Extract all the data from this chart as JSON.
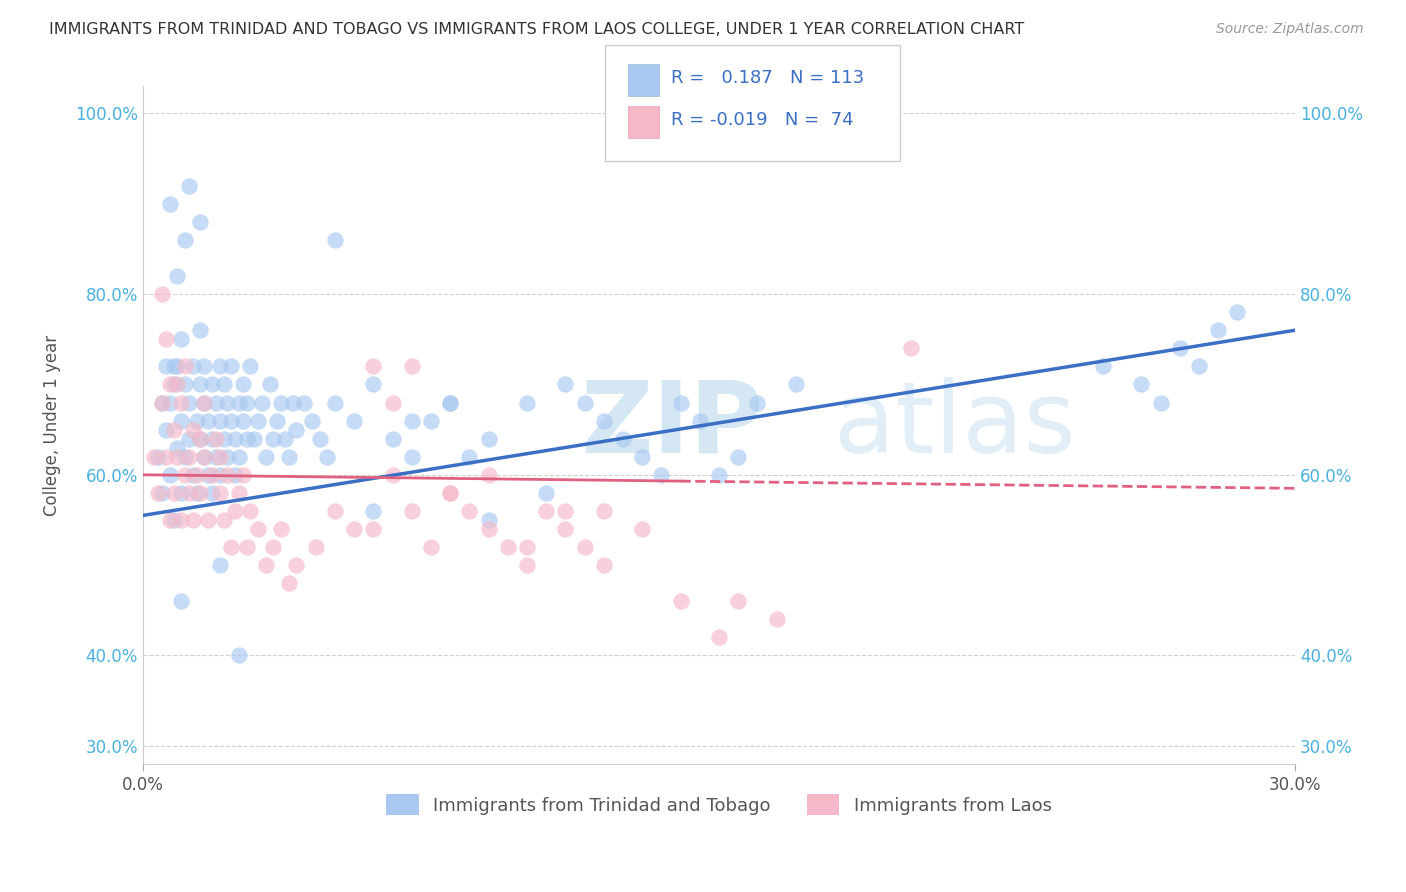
{
  "title": "IMMIGRANTS FROM TRINIDAD AND TOBAGO VS IMMIGRANTS FROM LAOS COLLEGE, UNDER 1 YEAR CORRELATION CHART",
  "source": "Source: ZipAtlas.com",
  "ylabel": "College, Under 1 year",
  "watermark_zip": "ZIP",
  "watermark_atlas": "atlas",
  "legend_labels": [
    "Immigrants from Trinidad and Tobago",
    "Immigrants from Laos"
  ],
  "blue_R": "0.187",
  "blue_N": "113",
  "pink_R": "-0.019",
  "pink_N": "74",
  "xlim": [
    0.0,
    0.3
  ],
  "ylim": [
    0.28,
    1.03
  ],
  "ytick_values": [
    0.3,
    0.4,
    0.6,
    0.8,
    1.0
  ],
  "ytick_labels": [
    "30.0%",
    "40.0%",
    "60.0%",
    "80.0%",
    "100.0%"
  ],
  "blue_color": "#a8c8f0",
  "blue_line_color": "#3a6fc4",
  "pink_color": "#f5b8c8",
  "pink_line_color": "#e06080",
  "background_color": "#ffffff",
  "grid_color": "#d0d0d0",
  "blue_scatter_x": [
    0.004,
    0.005,
    0.005,
    0.006,
    0.006,
    0.007,
    0.007,
    0.008,
    0.008,
    0.009,
    0.009,
    0.01,
    0.01,
    0.01,
    0.011,
    0.011,
    0.012,
    0.012,
    0.013,
    0.013,
    0.014,
    0.014,
    0.015,
    0.015,
    0.015,
    0.016,
    0.016,
    0.016,
    0.017,
    0.017,
    0.018,
    0.018,
    0.018,
    0.019,
    0.019,
    0.02,
    0.02,
    0.02,
    0.021,
    0.021,
    0.022,
    0.022,
    0.023,
    0.023,
    0.024,
    0.024,
    0.025,
    0.025,
    0.026,
    0.026,
    0.027,
    0.027,
    0.028,
    0.029,
    0.03,
    0.031,
    0.032,
    0.033,
    0.034,
    0.035,
    0.036,
    0.037,
    0.038,
    0.039,
    0.04,
    0.042,
    0.044,
    0.046,
    0.048,
    0.05,
    0.055,
    0.06,
    0.065,
    0.07,
    0.08,
    0.09,
    0.1,
    0.11,
    0.12,
    0.13,
    0.14,
    0.15,
    0.16,
    0.17,
    0.09,
    0.085,
    0.075,
    0.105,
    0.115,
    0.125,
    0.135,
    0.145,
    0.155,
    0.25,
    0.26,
    0.265,
    0.27,
    0.275,
    0.28,
    0.285,
    0.007,
    0.008,
    0.009,
    0.01,
    0.011,
    0.012,
    0.015,
    0.02,
    0.025,
    0.05,
    0.06,
    0.07,
    0.08
  ],
  "blue_scatter_y": [
    0.62,
    0.58,
    0.68,
    0.65,
    0.72,
    0.6,
    0.68,
    0.55,
    0.7,
    0.63,
    0.72,
    0.58,
    0.66,
    0.75,
    0.62,
    0.7,
    0.64,
    0.68,
    0.6,
    0.72,
    0.58,
    0.66,
    0.64,
    0.7,
    0.76,
    0.62,
    0.68,
    0.72,
    0.6,
    0.66,
    0.64,
    0.7,
    0.58,
    0.62,
    0.68,
    0.66,
    0.72,
    0.6,
    0.64,
    0.7,
    0.62,
    0.68,
    0.66,
    0.72,
    0.6,
    0.64,
    0.68,
    0.62,
    0.66,
    0.7,
    0.64,
    0.68,
    0.72,
    0.64,
    0.66,
    0.68,
    0.62,
    0.7,
    0.64,
    0.66,
    0.68,
    0.64,
    0.62,
    0.68,
    0.65,
    0.68,
    0.66,
    0.64,
    0.62,
    0.68,
    0.66,
    0.7,
    0.64,
    0.66,
    0.68,
    0.64,
    0.68,
    0.7,
    0.66,
    0.62,
    0.68,
    0.6,
    0.68,
    0.7,
    0.55,
    0.62,
    0.66,
    0.58,
    0.68,
    0.64,
    0.6,
    0.66,
    0.62,
    0.72,
    0.7,
    0.68,
    0.74,
    0.72,
    0.76,
    0.78,
    0.9,
    0.72,
    0.82,
    0.46,
    0.86,
    0.92,
    0.88,
    0.5,
    0.4,
    0.86,
    0.56,
    0.62,
    0.68
  ],
  "pink_scatter_x": [
    0.003,
    0.004,
    0.005,
    0.005,
    0.006,
    0.006,
    0.007,
    0.007,
    0.008,
    0.008,
    0.009,
    0.009,
    0.01,
    0.01,
    0.011,
    0.011,
    0.012,
    0.012,
    0.013,
    0.013,
    0.014,
    0.015,
    0.015,
    0.016,
    0.016,
    0.017,
    0.018,
    0.019,
    0.02,
    0.02,
    0.021,
    0.022,
    0.023,
    0.024,
    0.025,
    0.026,
    0.027,
    0.028,
    0.03,
    0.032,
    0.034,
    0.036,
    0.038,
    0.04,
    0.045,
    0.05,
    0.055,
    0.06,
    0.065,
    0.07,
    0.08,
    0.09,
    0.1,
    0.11,
    0.12,
    0.13,
    0.14,
    0.06,
    0.065,
    0.07,
    0.075,
    0.08,
    0.085,
    0.09,
    0.095,
    0.1,
    0.105,
    0.11,
    0.115,
    0.12,
    0.2,
    0.15,
    0.155,
    0.165
  ],
  "pink_scatter_y": [
    0.62,
    0.58,
    0.8,
    0.68,
    0.75,
    0.62,
    0.7,
    0.55,
    0.65,
    0.58,
    0.62,
    0.7,
    0.55,
    0.68,
    0.6,
    0.72,
    0.62,
    0.58,
    0.55,
    0.65,
    0.6,
    0.64,
    0.58,
    0.62,
    0.68,
    0.55,
    0.6,
    0.64,
    0.58,
    0.62,
    0.55,
    0.6,
    0.52,
    0.56,
    0.58,
    0.6,
    0.52,
    0.56,
    0.54,
    0.5,
    0.52,
    0.54,
    0.48,
    0.5,
    0.52,
    0.56,
    0.54,
    0.72,
    0.68,
    0.56,
    0.58,
    0.6,
    0.52,
    0.56,
    0.5,
    0.54,
    0.46,
    0.54,
    0.6,
    0.72,
    0.52,
    0.58,
    0.56,
    0.54,
    0.52,
    0.5,
    0.56,
    0.54,
    0.52,
    0.56,
    0.74,
    0.42,
    0.46,
    0.44
  ]
}
